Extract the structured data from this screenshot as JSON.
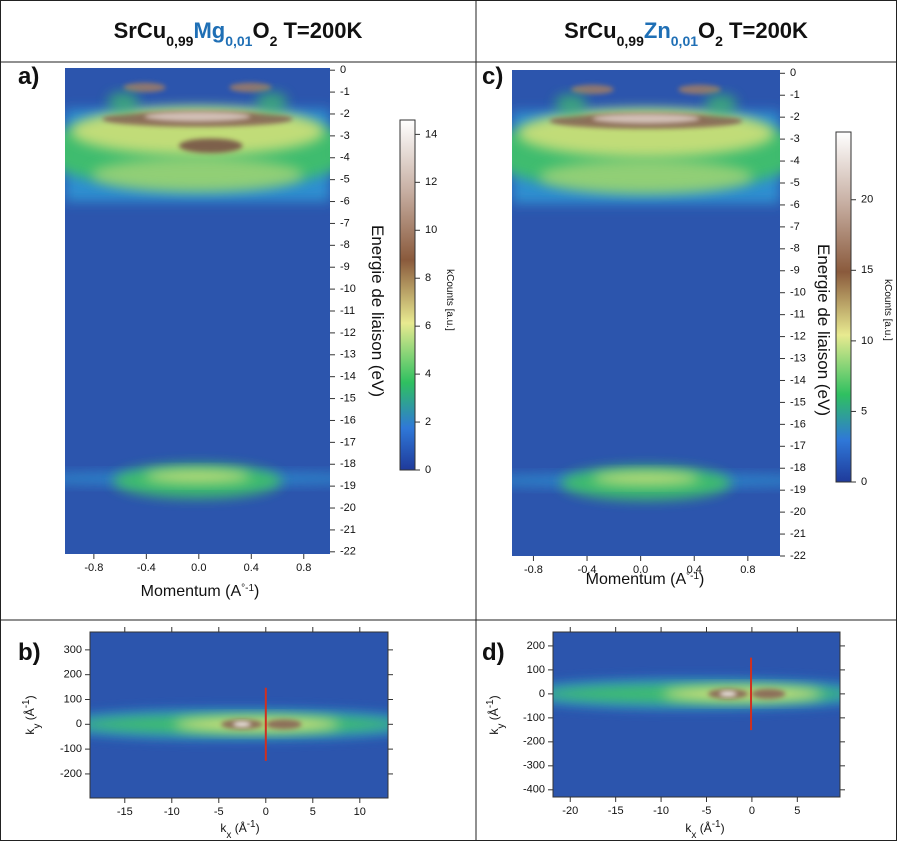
{
  "header": {
    "left_title": {
      "parts": [
        "SrCu",
        "0,99",
        "Mg",
        "0,01",
        "O",
        "2",
        " T=200K"
      ]
    },
    "right_title": {
      "parts": [
        "SrCu",
        "0,99",
        "Zn",
        "0,01",
        "O",
        "2",
        " T=200K"
      ]
    }
  },
  "panels": [
    {
      "letter": "a)",
      "type": "heatmap",
      "xlabel": {
        "parts": [
          "Momentum (A",
          "°-1",
          ")"
        ]
      },
      "ylabel": "Energie de liaison (eV)",
      "xlim": [
        -1.02,
        1.0
      ],
      "ylim": [
        -22.1,
        0.1
      ],
      "xticks": [
        -0.8,
        -0.4,
        {
          "value": 0,
          "label": "0.0"
        },
        0.4,
        0.8
      ],
      "yticks": [
        0,
        -1,
        -2,
        -3,
        -4,
        -5,
        -6,
        -7,
        -8,
        -9,
        -10,
        -11,
        -12,
        -13,
        -14,
        -15,
        -16,
        -17,
        -18,
        -19,
        -20,
        -21,
        -22
      ],
      "colorbar": {
        "label": "kCounts [a.u.]",
        "lim": [
          0,
          14.6
        ],
        "ticks": [
          0,
          2,
          4,
          6,
          8,
          10,
          12,
          14
        ]
      }
    },
    {
      "letter": "c)",
      "type": "heatmap",
      "xlabel": {
        "parts": [
          "Momentum (A",
          "°-1",
          ")"
        ]
      },
      "ylabel": "Energie de liaison (eV)",
      "xlim": [
        -0.96,
        1.04
      ],
      "ylim": [
        -22,
        0.15
      ],
      "xticks": [
        -0.8,
        -0.4,
        {
          "value": 0,
          "label": "0.0"
        },
        0.4,
        0.8
      ],
      "yticks": [
        0,
        -1,
        -2,
        -3,
        -4,
        -5,
        -6,
        -7,
        -8,
        -9,
        -10,
        -11,
        -12,
        -13,
        -14,
        -15,
        -16,
        -17,
        -18,
        -19,
        -20,
        -21,
        -22
      ],
      "colorbar": {
        "label": "kCounts [a.u.]",
        "lim": [
          0,
          24.8
        ],
        "ticks": [
          0,
          5,
          10,
          15,
          20
        ]
      }
    },
    {
      "letter": "b)",
      "type": "heatmap",
      "xlabel": {
        "parts": [
          "k",
          "x",
          " (Å",
          "-1",
          ")"
        ]
      },
      "ylabel": {
        "parts": [
          "k",
          "y",
          " (Å",
          "-1",
          ")"
        ]
      },
      "xlim": [
        -18.7,
        13
      ],
      "ylim": [
        -297,
        372
      ],
      "xticks": [
        -15,
        -10,
        -5,
        0,
        5,
        10
      ],
      "yticks": [
        300,
        200,
        100,
        0,
        -100,
        -200
      ]
    },
    {
      "letter": "d)",
      "type": "heatmap",
      "xlabel": {
        "parts": [
          "k",
          "x",
          " (Å",
          "-1",
          ")"
        ]
      },
      "ylabel": {
        "parts": [
          "k",
          "y",
          " (Å",
          "-1",
          ")"
        ]
      },
      "xlim": [
        -21.9,
        9.7
      ],
      "ylim": [
        -430,
        258
      ],
      "xticks": [
        -20,
        -15,
        -10,
        -5,
        0,
        5
      ],
      "yticks": [
        200,
        100,
        0,
        -100,
        -200,
        -300,
        -400
      ]
    }
  ]
}
